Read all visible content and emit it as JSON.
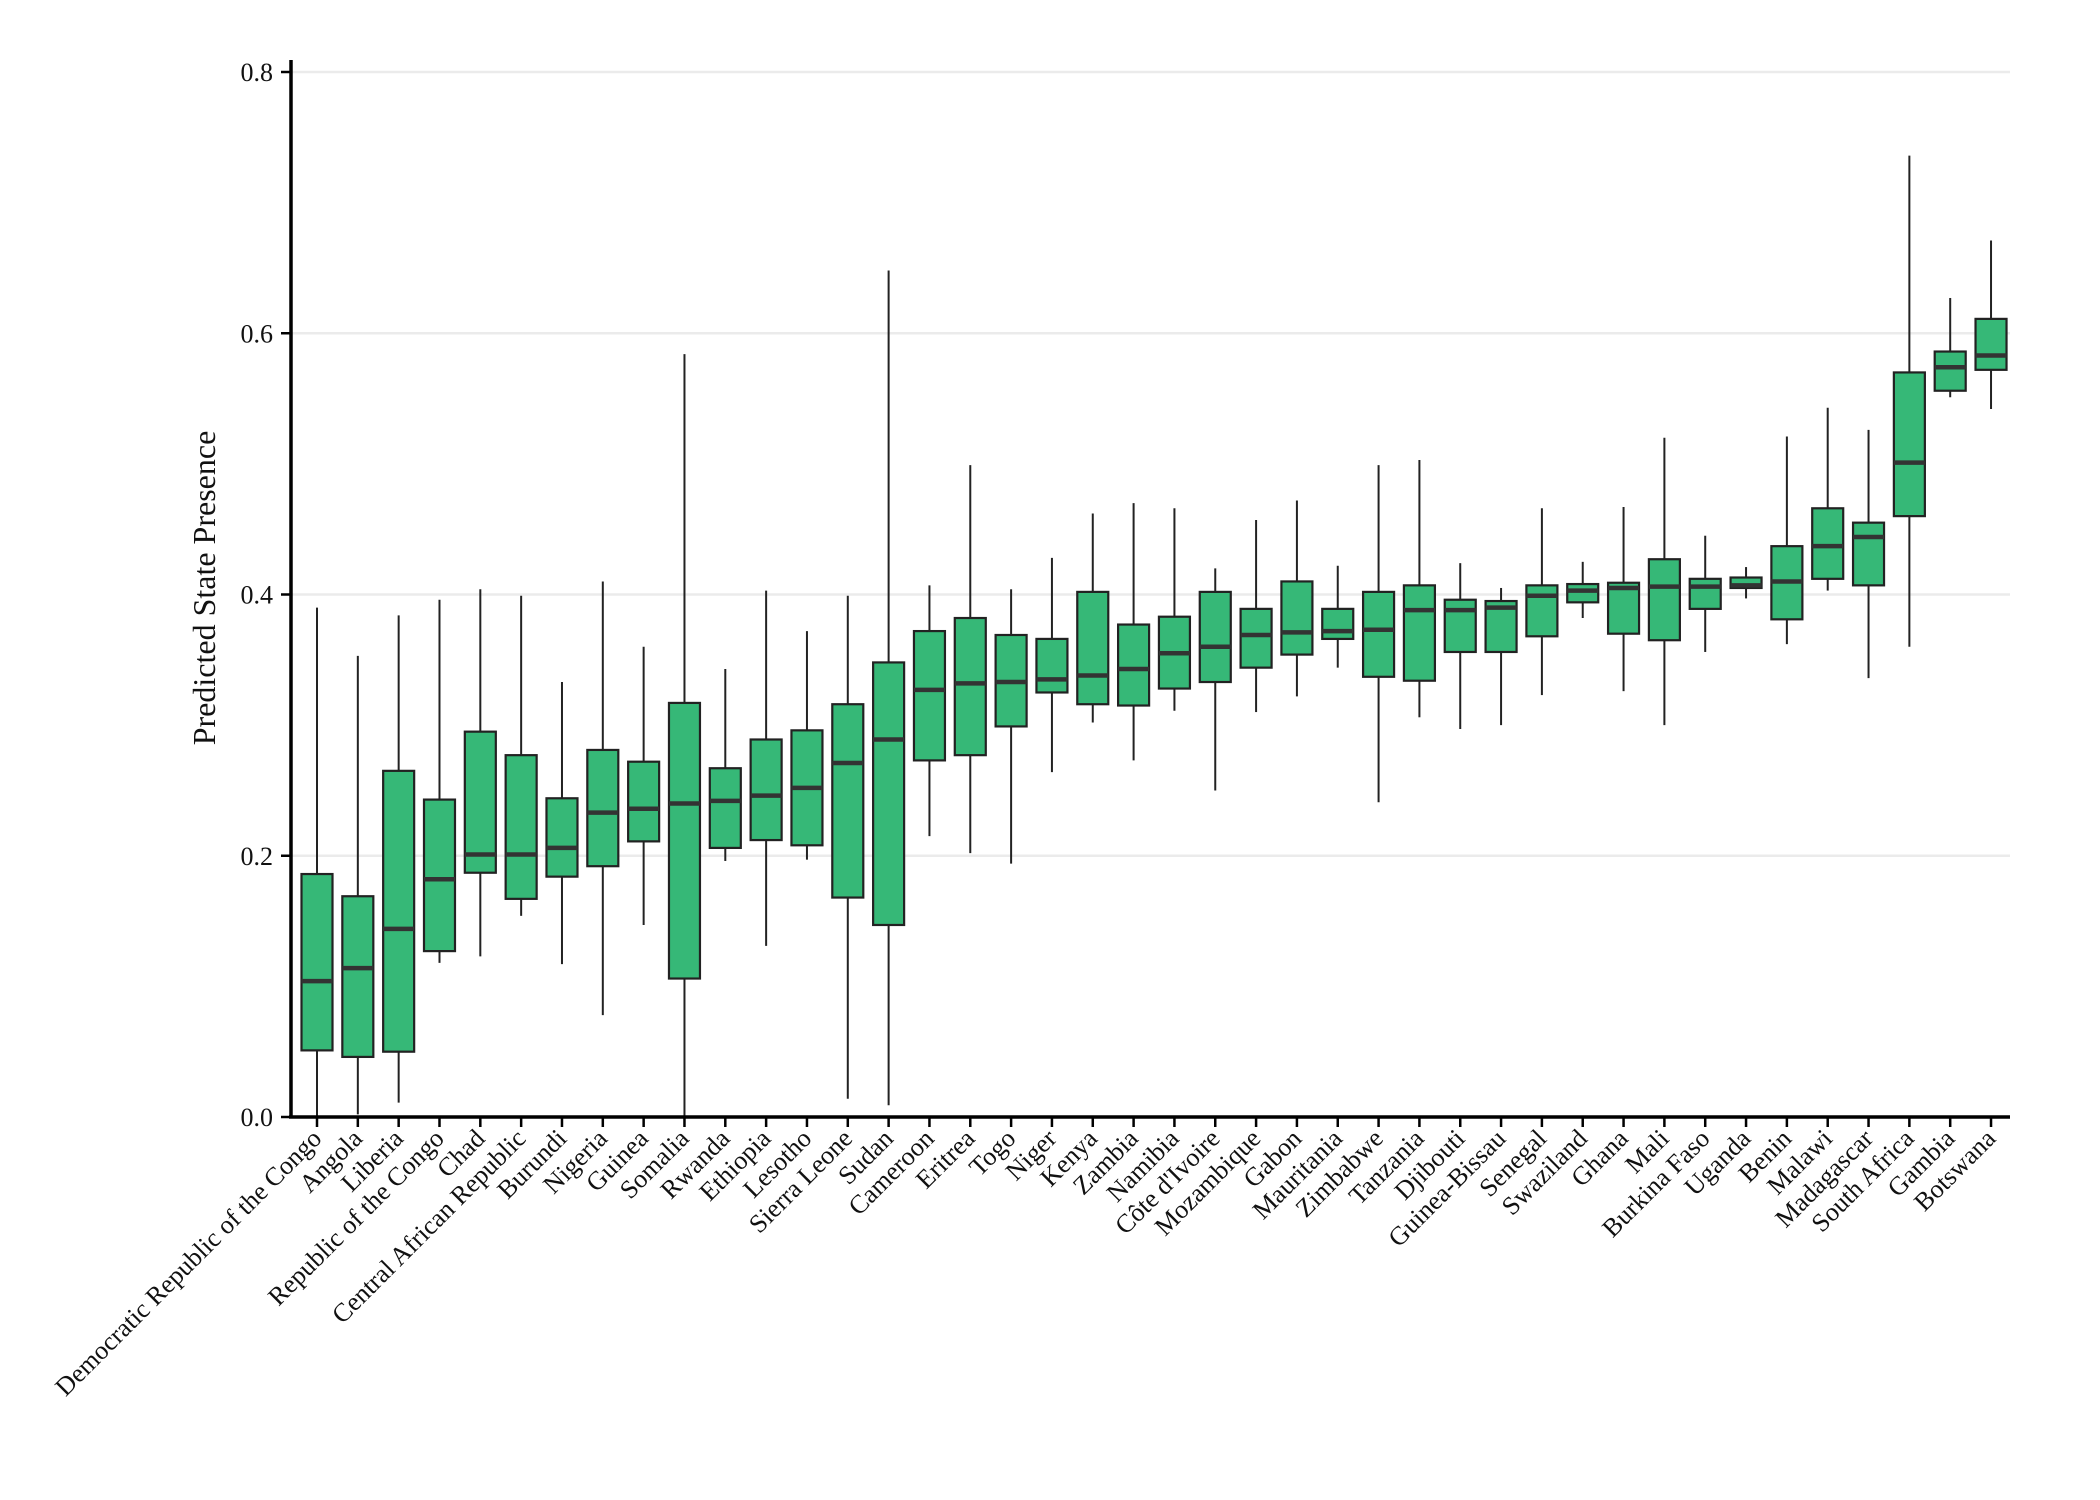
{
  "chart_data": {
    "type": "boxplot",
    "title": "",
    "xlabel": "",
    "ylabel": "Predicted State Presence",
    "ylim": [
      0,
      0.8
    ],
    "yticks": [
      0.0,
      0.2,
      0.4,
      0.6,
      0.8
    ],
    "ytick_labels": [
      "0.0",
      "0.2",
      "0.4",
      "0.6",
      "0.8"
    ],
    "grid": "horizontal",
    "box_color": "#36b877",
    "categories": [
      "Democratic Republic of the Congo",
      "Angola",
      "Liberia",
      "Republic of the Congo",
      "Chad",
      "Central African Republic",
      "Burundi",
      "Nigeria",
      "Guinea",
      "Somalia",
      "Rwanda",
      "Ethiopia",
      "Lesotho",
      "Sierra Leone",
      "Sudan",
      "Cameroon",
      "Eritrea",
      "Togo",
      "Niger",
      "Kenya",
      "Zambia",
      "Namibia",
      "Côte d'Ivoire",
      "Mozambique",
      "Gabon",
      "Mauritania",
      "Zimbabwe",
      "Tanzania",
      "Djibouti",
      "Guinea-Bissau",
      "Senegal",
      "Swaziland",
      "Ghana",
      "Mali",
      "Burkina Faso",
      "Uganda",
      "Benin",
      "Malawi",
      "Madagascar",
      "South Africa",
      "Gambia",
      "Botswana"
    ],
    "boxes": [
      {
        "min": 0.0,
        "q1": 0.051,
        "median": 0.104,
        "q3": 0.186,
        "max": 0.39
      },
      {
        "min": 0.002,
        "q1": 0.046,
        "median": 0.114,
        "q3": 0.169,
        "max": 0.353
      },
      {
        "min": 0.011,
        "q1": 0.05,
        "median": 0.144,
        "q3": 0.265,
        "max": 0.384
      },
      {
        "min": 0.118,
        "q1": 0.127,
        "median": 0.182,
        "q3": 0.243,
        "max": 0.396
      },
      {
        "min": 0.123,
        "q1": 0.187,
        "median": 0.201,
        "q3": 0.295,
        "max": 0.404
      },
      {
        "min": 0.154,
        "q1": 0.167,
        "median": 0.201,
        "q3": 0.277,
        "max": 0.399
      },
      {
        "min": 0.117,
        "q1": 0.184,
        "median": 0.206,
        "q3": 0.244,
        "max": 0.333
      },
      {
        "min": 0.078,
        "q1": 0.192,
        "median": 0.233,
        "q3": 0.281,
        "max": 0.41
      },
      {
        "min": 0.147,
        "q1": 0.211,
        "median": 0.236,
        "q3": 0.272,
        "max": 0.36
      },
      {
        "min": 0.0,
        "q1": 0.106,
        "median": 0.24,
        "q3": 0.317,
        "max": 0.584
      },
      {
        "min": 0.196,
        "q1": 0.206,
        "median": 0.242,
        "q3": 0.267,
        "max": 0.343
      },
      {
        "min": 0.131,
        "q1": 0.212,
        "median": 0.246,
        "q3": 0.289,
        "max": 0.403
      },
      {
        "min": 0.197,
        "q1": 0.208,
        "median": 0.252,
        "q3": 0.296,
        "max": 0.372
      },
      {
        "min": 0.014,
        "q1": 0.168,
        "median": 0.271,
        "q3": 0.316,
        "max": 0.399
      },
      {
        "min": 0.009,
        "q1": 0.147,
        "median": 0.289,
        "q3": 0.348,
        "max": 0.648
      },
      {
        "min": 0.215,
        "q1": 0.273,
        "median": 0.327,
        "q3": 0.372,
        "max": 0.407
      },
      {
        "min": 0.202,
        "q1": 0.277,
        "median": 0.332,
        "q3": 0.382,
        "max": 0.499
      },
      {
        "min": 0.194,
        "q1": 0.299,
        "median": 0.333,
        "q3": 0.369,
        "max": 0.404
      },
      {
        "min": 0.264,
        "q1": 0.325,
        "median": 0.335,
        "q3": 0.366,
        "max": 0.428
      },
      {
        "min": 0.302,
        "q1": 0.316,
        "median": 0.338,
        "q3": 0.402,
        "max": 0.462
      },
      {
        "min": 0.273,
        "q1": 0.315,
        "median": 0.343,
        "q3": 0.377,
        "max": 0.47
      },
      {
        "min": 0.311,
        "q1": 0.328,
        "median": 0.355,
        "q3": 0.383,
        "max": 0.466
      },
      {
        "min": 0.25,
        "q1": 0.333,
        "median": 0.36,
        "q3": 0.402,
        "max": 0.42
      },
      {
        "min": 0.31,
        "q1": 0.344,
        "median": 0.369,
        "q3": 0.389,
        "max": 0.457
      },
      {
        "min": 0.322,
        "q1": 0.354,
        "median": 0.371,
        "q3": 0.41,
        "max": 0.472
      },
      {
        "min": 0.344,
        "q1": 0.366,
        "median": 0.372,
        "q3": 0.389,
        "max": 0.422
      },
      {
        "min": 0.241,
        "q1": 0.337,
        "median": 0.373,
        "q3": 0.402,
        "max": 0.499
      },
      {
        "min": 0.306,
        "q1": 0.334,
        "median": 0.388,
        "q3": 0.407,
        "max": 0.503
      },
      {
        "min": 0.297,
        "q1": 0.356,
        "median": 0.388,
        "q3": 0.396,
        "max": 0.424
      },
      {
        "min": 0.3,
        "q1": 0.356,
        "median": 0.39,
        "q3": 0.395,
        "max": 0.405
      },
      {
        "min": 0.323,
        "q1": 0.368,
        "median": 0.399,
        "q3": 0.407,
        "max": 0.466
      },
      {
        "min": 0.382,
        "q1": 0.394,
        "median": 0.403,
        "q3": 0.408,
        "max": 0.425
      },
      {
        "min": 0.326,
        "q1": 0.37,
        "median": 0.405,
        "q3": 0.409,
        "max": 0.467
      },
      {
        "min": 0.3,
        "q1": 0.365,
        "median": 0.406,
        "q3": 0.427,
        "max": 0.52
      },
      {
        "min": 0.356,
        "q1": 0.389,
        "median": 0.406,
        "q3": 0.412,
        "max": 0.445
      },
      {
        "min": 0.397,
        "q1": 0.405,
        "median": 0.407,
        "q3": 0.413,
        "max": 0.421
      },
      {
        "min": 0.362,
        "q1": 0.381,
        "median": 0.41,
        "q3": 0.437,
        "max": 0.521
      },
      {
        "min": 0.403,
        "q1": 0.412,
        "median": 0.437,
        "q3": 0.466,
        "max": 0.543
      },
      {
        "min": 0.336,
        "q1": 0.407,
        "median": 0.444,
        "q3": 0.455,
        "max": 0.526
      },
      {
        "min": 0.36,
        "q1": 0.46,
        "median": 0.501,
        "q3": 0.57,
        "max": 0.736
      },
      {
        "min": 0.551,
        "q1": 0.556,
        "median": 0.574,
        "q3": 0.586,
        "max": 0.627
      },
      {
        "min": 0.542,
        "q1": 0.572,
        "median": 0.583,
        "q3": 0.611,
        "max": 0.671
      }
    ]
  }
}
